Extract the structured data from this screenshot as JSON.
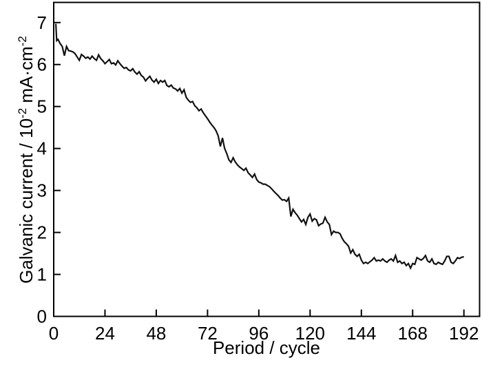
{
  "figure": {
    "background": "#ffffff",
    "frame_color": "#000000",
    "curve_color": "#111111"
  },
  "chart_data": {
    "type": "line",
    "title": "",
    "xlabel": "Period / cycle",
    "ylabel": "Galvanic current / 10⁻² mA·cm⁻²",
    "ylabel_parts": {
      "base1": "Galvanic current / 10",
      "sup1": "-2",
      "base2": " mA·cm",
      "sup2": "-2"
    },
    "xlim": [
      0,
      199.5
    ],
    "ylim": [
      0,
      7.48
    ],
    "x_ticks": [
      0,
      24,
      48,
      72,
      96,
      120,
      144,
      168,
      192
    ],
    "y_ticks": [
      0,
      1,
      2,
      3,
      4,
      5,
      6,
      7
    ],
    "grid": false,
    "legend_position": "none",
    "series": [
      {
        "name": "galvanic current",
        "points": [
          [
            1,
            6.97
          ],
          [
            1.4,
            6.57
          ],
          [
            2,
            6.6
          ],
          [
            3,
            6.5
          ],
          [
            4,
            6.43
          ],
          [
            5,
            6.21
          ],
          [
            6,
            6.43
          ],
          [
            7,
            6.33
          ],
          [
            8,
            6.32
          ],
          [
            9,
            6.3
          ],
          [
            10,
            6.26
          ],
          [
            11,
            6.18
          ],
          [
            12,
            6.1
          ],
          [
            13,
            6.24
          ],
          [
            14,
            6.2
          ],
          [
            15,
            6.15
          ],
          [
            16,
            6.18
          ],
          [
            17,
            6.13
          ],
          [
            18,
            6.2
          ],
          [
            19,
            6.14
          ],
          [
            20,
            6.1
          ],
          [
            21,
            6.23
          ],
          [
            22,
            6.14
          ],
          [
            23,
            6.09
          ],
          [
            24,
            6.02
          ],
          [
            25,
            6.07
          ],
          [
            26,
            6.12
          ],
          [
            27,
            6.02
          ],
          [
            28,
            6.04
          ],
          [
            29,
            5.99
          ],
          [
            30,
            6.09
          ],
          [
            31,
            6.02
          ],
          [
            32,
            5.96
          ],
          [
            33,
            5.91
          ],
          [
            34,
            5.93
          ],
          [
            35,
            5.87
          ],
          [
            36,
            5.85
          ],
          [
            37,
            5.9
          ],
          [
            38,
            5.82
          ],
          [
            39,
            5.77
          ],
          [
            40,
            5.83
          ],
          [
            41,
            5.74
          ],
          [
            42,
            5.7
          ],
          [
            43,
            5.61
          ],
          [
            44,
            5.67
          ],
          [
            45,
            5.72
          ],
          [
            46,
            5.63
          ],
          [
            47,
            5.58
          ],
          [
            48,
            5.65
          ],
          [
            49,
            5.55
          ],
          [
            50,
            5.62
          ],
          [
            51,
            5.58
          ],
          [
            52,
            5.62
          ],
          [
            53,
            5.5
          ],
          [
            54,
            5.47
          ],
          [
            55,
            5.51
          ],
          [
            56,
            5.44
          ],
          [
            57,
            5.42
          ],
          [
            58,
            5.37
          ],
          [
            59,
            5.43
          ],
          [
            60,
            5.32
          ],
          [
            61,
            5.4
          ],
          [
            62,
            5.22
          ],
          [
            63,
            5.15
          ],
          [
            64,
            5.1
          ],
          [
            65,
            5.12
          ],
          [
            66,
            5.02
          ],
          [
            67,
            4.97
          ],
          [
            68,
            4.9
          ],
          [
            69,
            4.94
          ],
          [
            70,
            4.85
          ],
          [
            71,
            4.78
          ],
          [
            72,
            4.71
          ],
          [
            73,
            4.63
          ],
          [
            74,
            4.56
          ],
          [
            75,
            4.5
          ],
          [
            76,
            4.42
          ],
          [
            77,
            4.3
          ],
          [
            78,
            4.05
          ],
          [
            79,
            4.25
          ],
          [
            80,
            4.0
          ],
          [
            81,
            3.88
          ],
          [
            82,
            3.73
          ],
          [
            83,
            3.67
          ],
          [
            84,
            3.78
          ],
          [
            85,
            3.68
          ],
          [
            86,
            3.61
          ],
          [
            87,
            3.56
          ],
          [
            88,
            3.52
          ],
          [
            89,
            3.48
          ],
          [
            90,
            3.53
          ],
          [
            91,
            3.42
          ],
          [
            92,
            3.37
          ],
          [
            93,
            3.31
          ],
          [
            94,
            3.39
          ],
          [
            95,
            3.26
          ],
          [
            96,
            3.2
          ],
          [
            97,
            3.18
          ],
          [
            98,
            3.15
          ],
          [
            99,
            3.15
          ],
          [
            100,
            3.12
          ],
          [
            101,
            3.09
          ],
          [
            102,
            3.04
          ],
          [
            103,
            2.98
          ],
          [
            104,
            2.93
          ],
          [
            105,
            2.88
          ],
          [
            106,
            2.82
          ],
          [
            107,
            2.77
          ],
          [
            108,
            2.78
          ],
          [
            109,
            2.74
          ],
          [
            110,
            2.82
          ],
          [
            111,
            2.38
          ],
          [
            112,
            2.55
          ],
          [
            113,
            2.47
          ],
          [
            114,
            2.41
          ],
          [
            115,
            2.33
          ],
          [
            116,
            2.25
          ],
          [
            117,
            2.31
          ],
          [
            118,
            2.19
          ],
          [
            119,
            2.36
          ],
          [
            120,
            2.44
          ],
          [
            121,
            2.27
          ],
          [
            122,
            2.33
          ],
          [
            123,
            2.3
          ],
          [
            124,
            2.16
          ],
          [
            125,
            2.2
          ],
          [
            126,
            2.22
          ],
          [
            127,
            2.36
          ],
          [
            128,
            2.25
          ],
          [
            129,
            2.19
          ],
          [
            130,
            1.95
          ],
          [
            131,
            2.03
          ],
          [
            132,
            2.0
          ],
          [
            133,
            2.0
          ],
          [
            134,
            1.97
          ],
          [
            135,
            1.86
          ],
          [
            136,
            1.78
          ],
          [
            137,
            1.73
          ],
          [
            138,
            1.67
          ],
          [
            139,
            1.51
          ],
          [
            140,
            1.59
          ],
          [
            141,
            1.48
          ],
          [
            142,
            1.43
          ],
          [
            143,
            1.48
          ],
          [
            144,
            1.34
          ],
          [
            145,
            1.26
          ],
          [
            146,
            1.29
          ],
          [
            147,
            1.26
          ],
          [
            148,
            1.3
          ],
          [
            149,
            1.34
          ],
          [
            150,
            1.4
          ],
          [
            151,
            1.32
          ],
          [
            152,
            1.34
          ],
          [
            153,
            1.32
          ],
          [
            154,
            1.37
          ],
          [
            155,
            1.32
          ],
          [
            156,
            1.29
          ],
          [
            157,
            1.34
          ],
          [
            158,
            1.37
          ],
          [
            159,
            1.32
          ],
          [
            160,
            1.45
          ],
          [
            161,
            1.29
          ],
          [
            162,
            1.32
          ],
          [
            163,
            1.26
          ],
          [
            164,
            1.29
          ],
          [
            165,
            1.21
          ],
          [
            166,
            1.26
          ],
          [
            167,
            1.15
          ],
          [
            168,
            1.26
          ],
          [
            169,
            1.24
          ],
          [
            170,
            1.4
          ],
          [
            171,
            1.37
          ],
          [
            172,
            1.34
          ],
          [
            173,
            1.38
          ],
          [
            174,
            1.45
          ],
          [
            175,
            1.32
          ],
          [
            176,
            1.29
          ],
          [
            177,
            1.37
          ],
          [
            178,
            1.26
          ],
          [
            179,
            1.24
          ],
          [
            180,
            1.29
          ],
          [
            181,
            1.26
          ],
          [
            182,
            1.24
          ],
          [
            183,
            1.32
          ],
          [
            184,
            1.43
          ],
          [
            185,
            1.43
          ],
          [
            186,
            1.29
          ],
          [
            187,
            1.26
          ],
          [
            188,
            1.32
          ],
          [
            189,
            1.4
          ],
          [
            190,
            1.38
          ],
          [
            191,
            1.41
          ],
          [
            192,
            1.42
          ]
        ]
      }
    ]
  }
}
